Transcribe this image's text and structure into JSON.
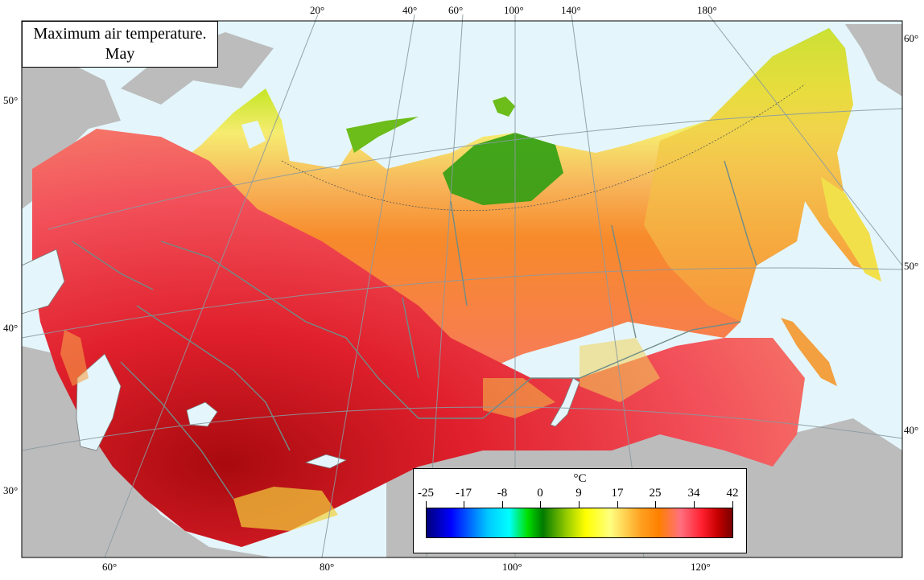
{
  "title": {
    "line1": "Maximum air temperature.",
    "line2": "May"
  },
  "top_longitudes": [
    "20°",
    "40°",
    "60°",
    "100°",
    "140°",
    "180°"
  ],
  "bottom_longitudes": [
    "60°",
    "80°",
    "100°",
    "120°"
  ],
  "left_latitudes": [
    "50°",
    "40°",
    "30°"
  ],
  "right_latitudes": [
    "60°",
    "50°",
    "40°"
  ],
  "legend": {
    "unit": "°C",
    "ticks": [
      "-25",
      "-17",
      "-8",
      "0",
      "9",
      "17",
      "25",
      "34",
      "42"
    ],
    "colors": [
      "#00007a",
      "#0000ff",
      "#00c8ff",
      "#00ffff",
      "#00e000",
      "#007a00",
      "#9acd00",
      "#ffff00",
      "#ffff80",
      "#ffa020",
      "#ff8000",
      "#ff7080",
      "#ff2030",
      "#c80000",
      "#780000"
    ]
  },
  "colors": {
    "ocean": "#e4f6fb",
    "land_outside": "#bcbcbc",
    "hot": "#e8303c",
    "very_hot": "#b80c10",
    "warm": "#f77a6e",
    "mild": "#f7981c",
    "cool": "#f2d84a",
    "cold": "#d8ea2a",
    "arctic": "#2a9a10"
  }
}
